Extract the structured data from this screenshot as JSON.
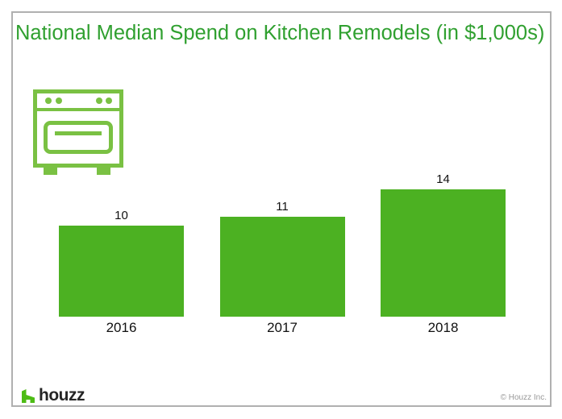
{
  "page": {
    "title": "National Median Spend on Kitchen Remodels (in $1,000s)"
  },
  "chart_data": {
    "type": "bar",
    "title": "National Median Spend on Kitchen Remodels (in $1,000s)",
    "categories": [
      "2016",
      "2017",
      "2018"
    ],
    "values": [
      10,
      11,
      14
    ],
    "value_labels": [
      "10",
      "11",
      "14"
    ],
    "unit_note": "in $1,000s",
    "xlabel": "",
    "ylabel": "",
    "ylim": [
      0,
      16
    ],
    "grid": false,
    "legend": false,
    "bar_color": "#4cb122"
  },
  "icons": {
    "stove_icon_color": "#7ac143",
    "houzz_mark_color": "#4dbc15"
  },
  "footer": {
    "brand": "houzz",
    "copyright": "© Houzz Inc."
  },
  "colors": {
    "title_green": "#30a030",
    "bar_green": "#4cb122",
    "border_gray": "#b0b0b0",
    "copyright_gray": "#999999",
    "label_black": "#111111"
  }
}
